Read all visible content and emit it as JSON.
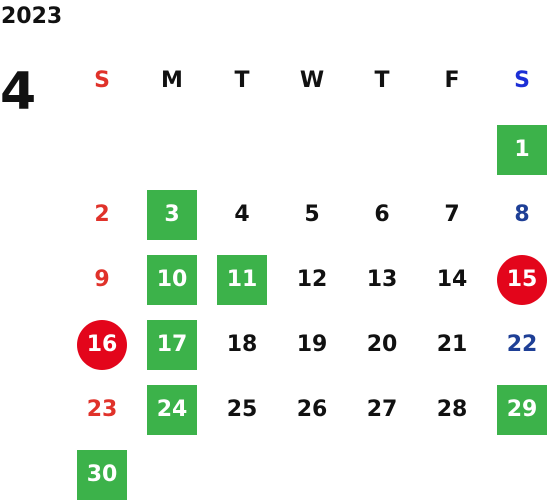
{
  "calendar": {
    "year": "2023",
    "month": "4",
    "weekdays": [
      "S",
      "M",
      "T",
      "W",
      "T",
      "F",
      "S"
    ],
    "weeks": [
      [
        {
          "day": ""
        },
        {
          "day": ""
        },
        {
          "day": ""
        },
        {
          "day": ""
        },
        {
          "day": ""
        },
        {
          "day": ""
        },
        {
          "day": "1",
          "mark": "green"
        }
      ],
      [
        {
          "day": "2"
        },
        {
          "day": "3",
          "mark": "green"
        },
        {
          "day": "4"
        },
        {
          "day": "5"
        },
        {
          "day": "6"
        },
        {
          "day": "7"
        },
        {
          "day": "8"
        }
      ],
      [
        {
          "day": "9"
        },
        {
          "day": "10",
          "mark": "green"
        },
        {
          "day": "11",
          "mark": "green"
        },
        {
          "day": "12"
        },
        {
          "day": "13"
        },
        {
          "day": "14"
        },
        {
          "day": "15",
          "mark": "red"
        }
      ],
      [
        {
          "day": "16",
          "mark": "red"
        },
        {
          "day": "17",
          "mark": "green"
        },
        {
          "day": "18"
        },
        {
          "day": "19"
        },
        {
          "day": "20"
        },
        {
          "day": "21"
        },
        {
          "day": "22"
        }
      ],
      [
        {
          "day": "23"
        },
        {
          "day": "24",
          "mark": "green"
        },
        {
          "day": "25"
        },
        {
          "day": "26"
        },
        {
          "day": "27"
        },
        {
          "day": "28"
        },
        {
          "day": "29",
          "mark": "green"
        }
      ],
      [
        {
          "day": "30",
          "mark": "green"
        },
        {
          "day": ""
        },
        {
          "day": ""
        },
        {
          "day": ""
        },
        {
          "day": ""
        },
        {
          "day": ""
        },
        {
          "day": ""
        }
      ]
    ]
  },
  "colors": {
    "green_mark": "#3cb24a",
    "red_mark": "#e3051b",
    "sunday_text": "#e0322a",
    "saturday_text": "#1e3f96",
    "saturday_header": "#1c2fd6"
  }
}
